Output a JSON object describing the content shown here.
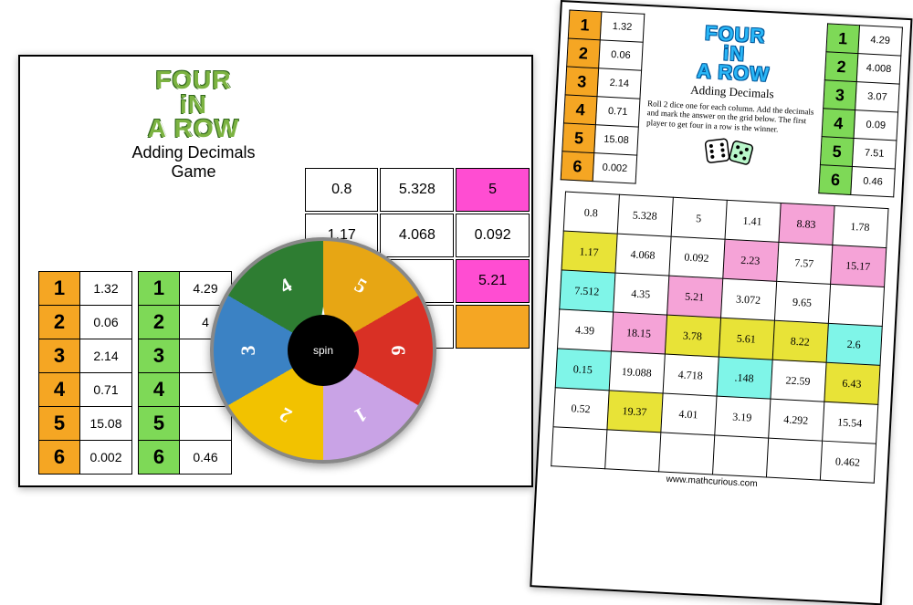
{
  "title_lines": [
    "FOUR",
    "iN",
    "A ROW"
  ],
  "subtitle_left": "Adding Decimals\nGame",
  "subtitle_right": "Adding Decimals",
  "instructions": "Roll 2 dice one for each column. Add the decimals and mark the answer on the grid below. The first player to get four in a row is the winner.",
  "colors": {
    "orange": "#f5a623",
    "green": "#7ed957",
    "magenta": "#ff4dd2",
    "yellow": "#e8e337",
    "cyan": "#7ff5e8",
    "pink": "#f5a3d7",
    "title_green": "#7cb342",
    "title_blue": "#29b6f6"
  },
  "column_a": [
    {
      "n": "1",
      "v": "1.32"
    },
    {
      "n": "2",
      "v": "0.06"
    },
    {
      "n": "3",
      "v": "2.14"
    },
    {
      "n": "4",
      "v": "0.71"
    },
    {
      "n": "5",
      "v": "15.08"
    },
    {
      "n": "6",
      "v": "0.002"
    }
  ],
  "column_b": [
    {
      "n": "1",
      "v": "4.29"
    },
    {
      "n": "2",
      "v": "4.008"
    },
    {
      "n": "3",
      "v": "3.07"
    },
    {
      "n": "4",
      "v": "0.09"
    },
    {
      "n": "5",
      "v": "7.51"
    },
    {
      "n": "6",
      "v": "0.46"
    }
  ],
  "left_column_b_partial": [
    "4.29",
    "4",
    "",
    "",
    "",
    "0.46"
  ],
  "left_grid": [
    [
      {
        "v": "0.8"
      },
      {
        "v": "5.328"
      },
      {
        "v": "5",
        "c": "magenta"
      }
    ],
    [
      {
        "v": "1.17"
      },
      {
        "v": "4.068"
      },
      {
        "v": "0.092"
      }
    ],
    [
      {
        "v": ""
      },
      {
        "v": ""
      },
      {
        "v": "5.21",
        "c": "magenta"
      }
    ],
    [
      {
        "v": ""
      },
      {
        "v": ""
      },
      {
        "v": "",
        "c": "orange"
      }
    ]
  ],
  "right_grid": [
    [
      {
        "v": "0.8"
      },
      {
        "v": "5.328"
      },
      {
        "v": "5"
      },
      {
        "v": "1.41"
      },
      {
        "v": "8.83",
        "c": "pink"
      },
      {
        "v": "1.78"
      }
    ],
    [
      {
        "v": "1.17",
        "c": "yellow"
      },
      {
        "v": "4.068"
      },
      {
        "v": "0.092"
      },
      {
        "v": "2.23",
        "c": "pink"
      },
      {
        "v": "7.57"
      },
      {
        "v": "15.17",
        "c": "pink"
      }
    ],
    [
      {
        "v": "7.512",
        "c": "cyan"
      },
      {
        "v": "4.35"
      },
      {
        "v": "5.21",
        "c": "pink"
      },
      {
        "v": "3.072"
      },
      {
        "v": "9.65"
      },
      {
        "v": ""
      }
    ],
    [
      {
        "v": "4.39"
      },
      {
        "v": "18.15",
        "c": "pink"
      },
      {
        "v": "3.78",
        "c": "yellow"
      },
      {
        "v": "5.61",
        "c": "yellow"
      },
      {
        "v": "8.22",
        "c": "yellow"
      },
      {
        "v": "2.6",
        "c": "cyan"
      }
    ],
    [
      {
        "v": "0.15",
        "c": "cyan"
      },
      {
        "v": "19.088"
      },
      {
        "v": "4.718"
      },
      {
        "v": ".148",
        "c": "cyan"
      },
      {
        "v": "22.59"
      },
      {
        "v": "6.43",
        "c": "yellow"
      }
    ],
    [
      {
        "v": "0.52"
      },
      {
        "v": "19.37",
        "c": "yellow"
      },
      {
        "v": "4.01"
      },
      {
        "v": "3.19"
      },
      {
        "v": "4.292"
      },
      {
        "v": "15.54"
      }
    ],
    [
      {
        "v": ""
      },
      {
        "v": ""
      },
      {
        "v": ""
      },
      {
        "v": ""
      },
      {
        "v": ""
      },
      {
        "v": "0.462"
      }
    ]
  ],
  "spinner": {
    "label": "spin",
    "segments": [
      {
        "n": "5",
        "color": "#e7a614",
        "angle": 30
      },
      {
        "n": "6",
        "color": "#d93025",
        "angle": 90
      },
      {
        "n": "1",
        "color": "#c9a3e6",
        "angle": 150
      },
      {
        "n": "2",
        "color": "#f2c200",
        "angle": 210
      },
      {
        "n": "3",
        "color": "#3b82c4",
        "angle": 270
      },
      {
        "n": "4",
        "color": "#2e7d32",
        "angle": 330
      }
    ]
  },
  "footer": "www.mathcurious.com"
}
